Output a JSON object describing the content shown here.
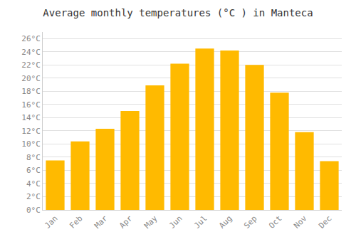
{
  "chart_data": {
    "type": "bar",
    "title": "Average monthly temperatures (°C ) in Manteca",
    "categories": [
      "Jan",
      "Feb",
      "Mar",
      "Apr",
      "May",
      "Jun",
      "Jul",
      "Aug",
      "Sep",
      "Oct",
      "Nov",
      "Dec"
    ],
    "values": [
      7.5,
      10.4,
      12.3,
      15.0,
      18.9,
      22.2,
      24.5,
      24.2,
      22.0,
      17.8,
      11.8,
      7.4
    ],
    "color": "#FFBA00",
    "ylim": [
      0,
      27
    ],
    "yticks": [
      {
        "value": 0,
        "label": "0°C"
      },
      {
        "value": 2,
        "label": "2°C"
      },
      {
        "value": 4,
        "label": "4°C"
      },
      {
        "value": 6,
        "label": "6°C"
      },
      {
        "value": 8,
        "label": "8°C"
      },
      {
        "value": 10,
        "label": "10°C"
      },
      {
        "value": 12,
        "label": "12°C"
      },
      {
        "value": 14,
        "label": "14°C"
      },
      {
        "value": 16,
        "label": "16°C"
      },
      {
        "value": 18,
        "label": "18°C"
      },
      {
        "value": 20,
        "label": "20°C"
      },
      {
        "value": 22,
        "label": "22°C"
      },
      {
        "value": 24,
        "label": "24°C"
      },
      {
        "value": 26,
        "label": "26°C"
      }
    ],
    "grid": true
  }
}
